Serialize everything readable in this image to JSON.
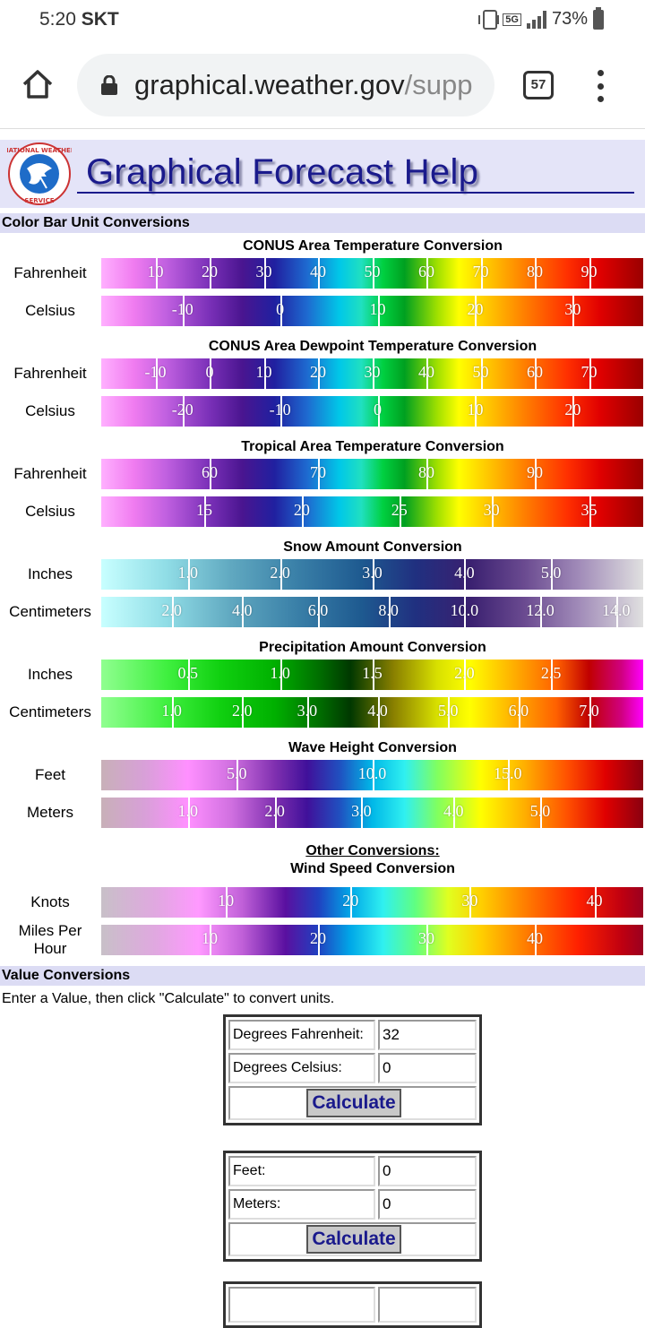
{
  "status_bar": {
    "time": "5:20",
    "carrier": "SKT",
    "network": "5G",
    "battery": "73%"
  },
  "browser": {
    "url_domain": "graphical.weather.gov",
    "url_path": "/supp",
    "tab_count": "57"
  },
  "banner": {
    "title": "Graphical Forecast Help",
    "logo_text": "NATIONAL WEATHER SERVICE"
  },
  "color_bar_section": "Color Bar Unit Conversions",
  "conversions": [
    {
      "title": "CONUS Area Temperature Conversion",
      "rows": [
        {
          "label": "Fahrenheit",
          "ticks": [
            "10",
            "20",
            "30",
            "40",
            "50",
            "60",
            "70",
            "80",
            "90"
          ]
        },
        {
          "label": "Celsius",
          "ticks": [
            "-10",
            "0",
            "10",
            "20",
            "30"
          ]
        }
      ]
    },
    {
      "title": "CONUS Area Dewpoint Temperature Conversion",
      "rows": [
        {
          "label": "Fahrenheit",
          "ticks": [
            "-10",
            "0",
            "10",
            "20",
            "30",
            "40",
            "50",
            "60",
            "70"
          ]
        },
        {
          "label": "Celsius",
          "ticks": [
            "-20",
            "-10",
            "0",
            "10",
            "20"
          ]
        }
      ]
    },
    {
      "title": "Tropical Area Temperature Conversion",
      "rows": [
        {
          "label": "Fahrenheit",
          "ticks": [
            "60",
            "70",
            "80",
            "90"
          ]
        },
        {
          "label": "Celsius",
          "ticks": [
            "15",
            "20",
            "25",
            "30",
            "35"
          ]
        }
      ]
    },
    {
      "title": "Snow Amount Conversion",
      "rows": [
        {
          "label": "Inches",
          "ticks": [
            "1.0",
            "2.0",
            "3.0",
            "4.0",
            "5.0"
          ]
        },
        {
          "label": "Centimeters",
          "ticks": [
            "2.0",
            "4.0",
            "6.0",
            "8.0",
            "10.0",
            "12.0",
            "14.0"
          ]
        }
      ]
    },
    {
      "title": "Precipitation Amount Conversion",
      "rows": [
        {
          "label": "Inches",
          "ticks": [
            "0.5",
            "1.0",
            "1.5",
            "2.0",
            "2.5"
          ]
        },
        {
          "label": "Centimeters",
          "ticks": [
            "1.0",
            "2.0",
            "3.0",
            "4.0",
            "5.0",
            "6.0",
            "7.0"
          ]
        }
      ]
    },
    {
      "title": "Wave Height Conversion",
      "rows": [
        {
          "label": "Feet",
          "ticks": [
            "5.0",
            "10.0",
            "15.0"
          ]
        },
        {
          "label": "Meters",
          "ticks": [
            "1.0",
            "2.0",
            "3.0",
            "4.0",
            "5.0"
          ]
        }
      ]
    }
  ],
  "other": {
    "heading": "Other Conversions:",
    "title": "Wind Speed Conversion",
    "rows": [
      {
        "label": "Knots",
        "ticks": [
          "10",
          "20",
          "30",
          "40"
        ]
      },
      {
        "label": "Miles Per Hour",
        "ticks": [
          "10",
          "20",
          "30",
          "40"
        ]
      }
    ]
  },
  "value_section": "Value Conversions",
  "instructions": "Enter a Value, then click \"Calculate\" to convert units.",
  "calc_temp": {
    "f_label": "Degrees Fahrenheit:",
    "f_value": "32",
    "c_label": "Degrees Celsius:",
    "c_value": "0",
    "button": "Calculate"
  },
  "calc_length": {
    "ft_label": "Feet:",
    "ft_value": "0",
    "m_label": "Meters:",
    "m_value": "0",
    "button": "Calculate"
  },
  "colors": {
    "accent": "#1a1a8c",
    "section_bg": "#dcdcf4",
    "banner_bg": "#e4e4f8"
  }
}
